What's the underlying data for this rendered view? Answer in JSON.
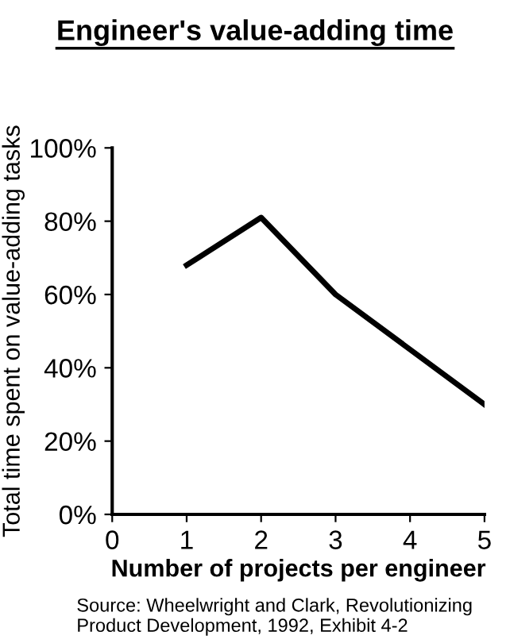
{
  "chart_data": {
    "type": "line",
    "title": "Engineer's value-adding time",
    "xlabel": "Number of projects per engineer",
    "ylabel": "Total time spent on value-adding tasks",
    "x": [
      1,
      2,
      3,
      4,
      5
    ],
    "series": [
      {
        "color": "#000000",
        "values": [
          68,
          81,
          60,
          45,
          30
        ]
      }
    ],
    "xlim": [
      0,
      5
    ],
    "xticks": [
      0,
      1,
      2,
      3,
      4,
      5
    ],
    "ylim": [
      0,
      100
    ],
    "yticks": [
      {
        "value": 0,
        "label": "0%"
      },
      {
        "value": 20,
        "label": "20%"
      },
      {
        "value": 40,
        "label": "40%"
      },
      {
        "value": 60,
        "label": "60%"
      },
      {
        "value": 80,
        "label": "80%"
      },
      {
        "value": 100,
        "label": "100%"
      }
    ],
    "grid": false,
    "marker": "none",
    "line_style": "solid",
    "annotations": [
      "Source: Wheelwright and Clark, Revolutionizing Product Development, 1992, Exhibit 4-2"
    ]
  }
}
